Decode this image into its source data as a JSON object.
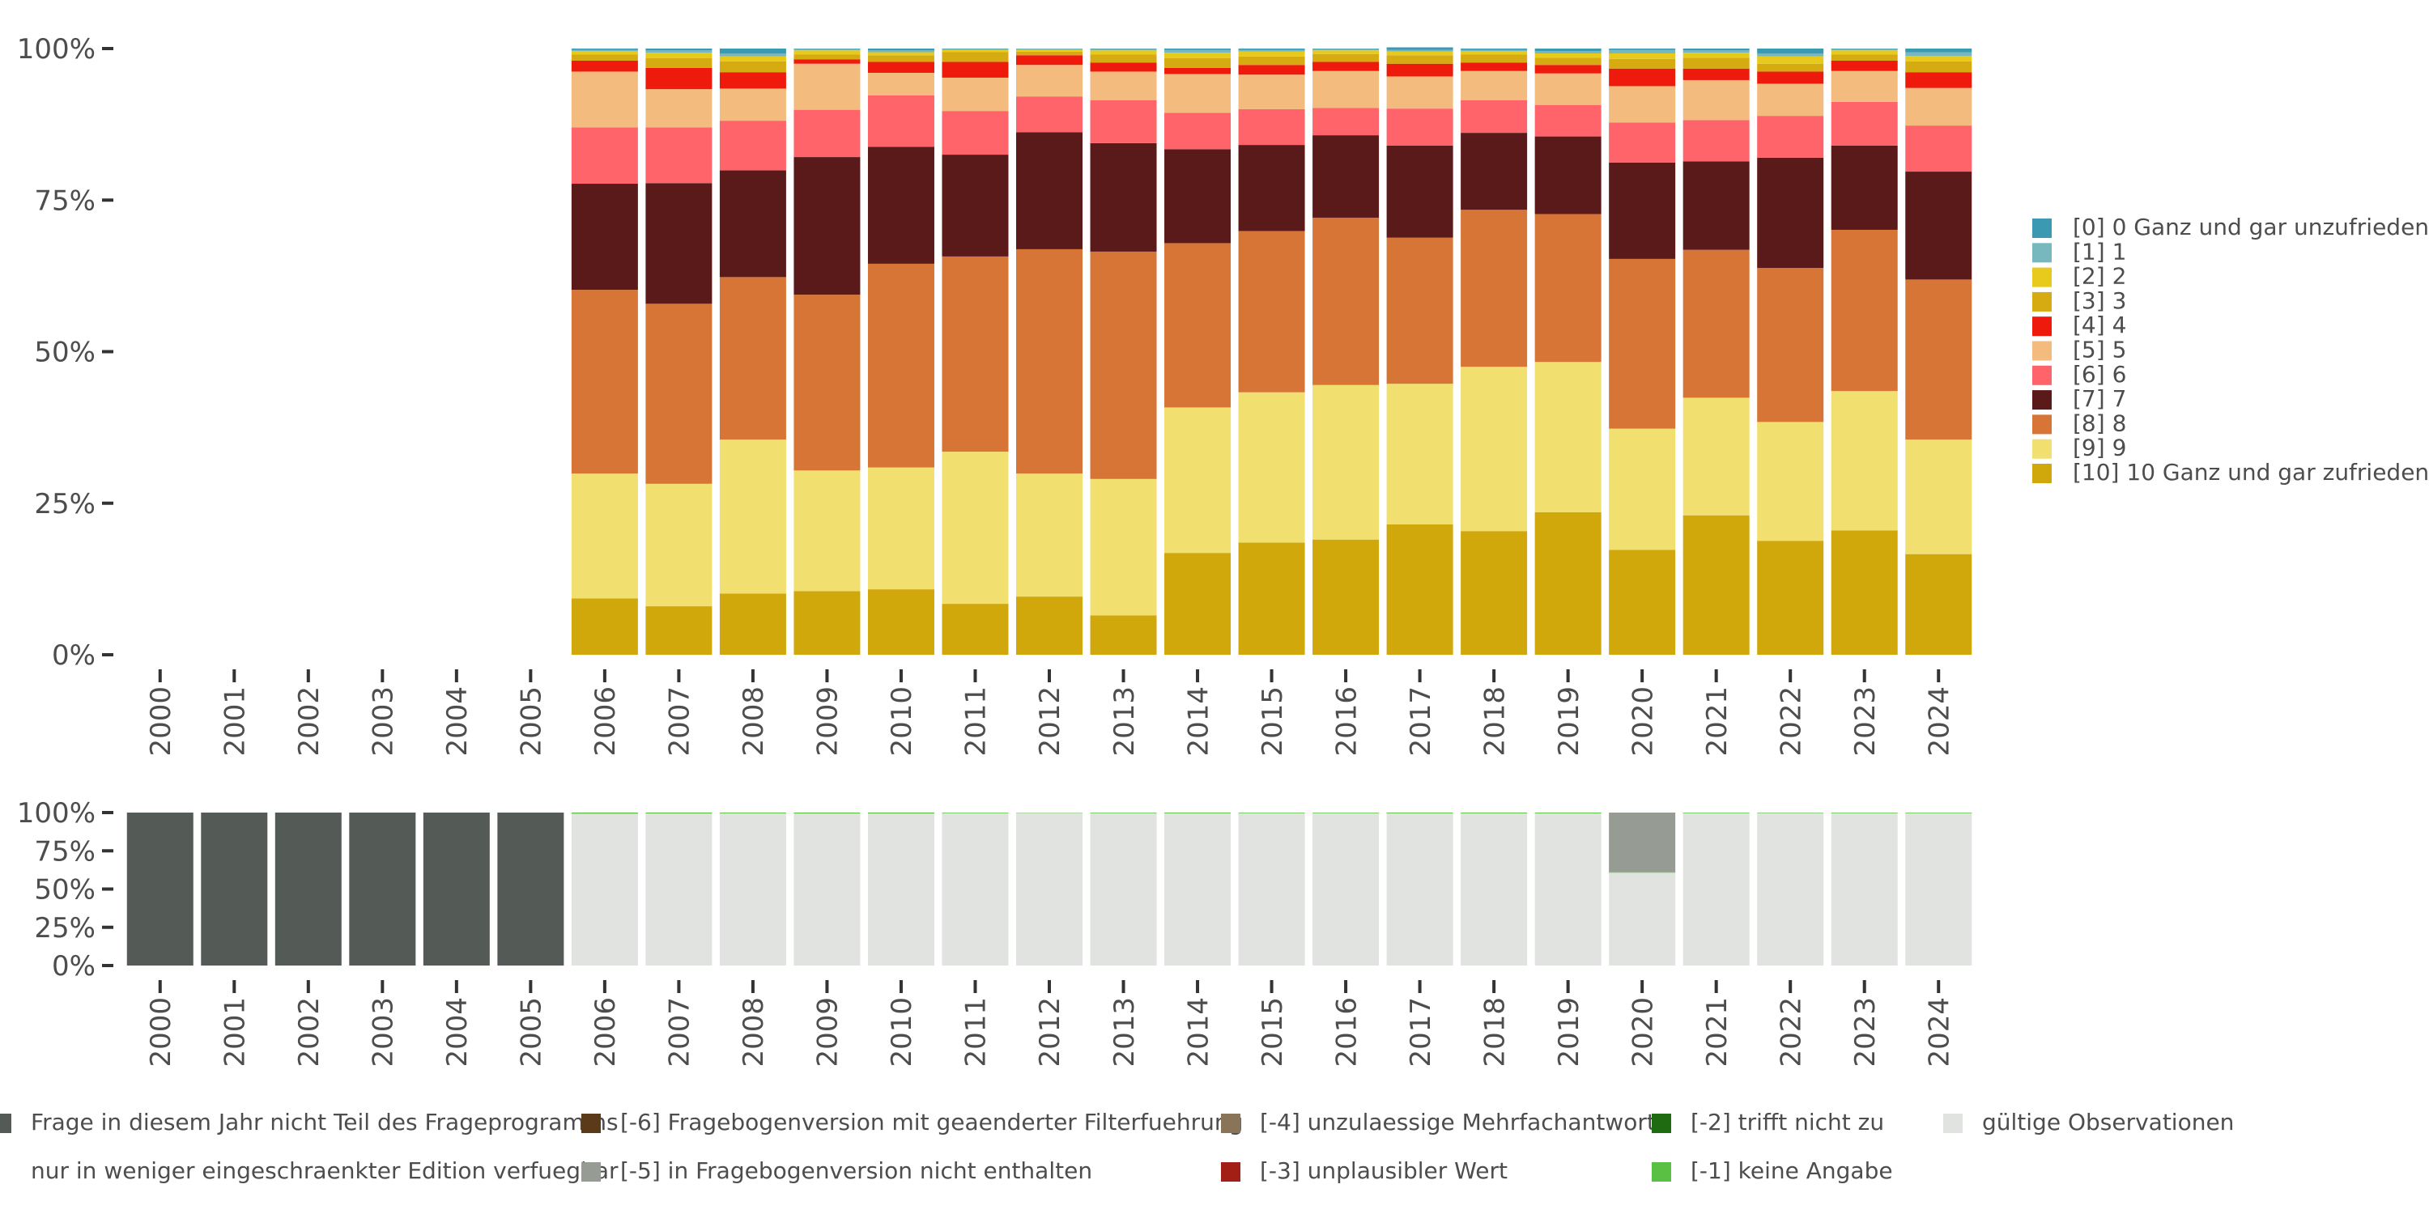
{
  "chart_data": [
    {
      "type": "bar",
      "stacked": true,
      "percent": true,
      "categories": [
        "2000",
        "2001",
        "2002",
        "2003",
        "2004",
        "2005",
        "2006",
        "2007",
        "2008",
        "2009",
        "2010",
        "2011",
        "2012",
        "2013",
        "2014",
        "2015",
        "2016",
        "2017",
        "2018",
        "2019",
        "2020",
        "2021",
        "2022",
        "2023",
        "2024"
      ],
      "ylim": [
        0,
        100
      ],
      "yticks": [
        "0%",
        "25%",
        "50%",
        "75%",
        "100%"
      ],
      "legend_position": "right",
      "series": [
        {
          "name": "[10] 10 Ganz und gar zufrieden",
          "color": "#d0a80b",
          "values": [
            0,
            0,
            0,
            0,
            0,
            0,
            9.3,
            8.0,
            10.1,
            10.5,
            10.8,
            8.4,
            9.6,
            6.5,
            16.8,
            18.5,
            19.0,
            21.5,
            20.4,
            23.5,
            17.3,
            23.0,
            18.8,
            20.5,
            16.6
          ]
        },
        {
          "name": "[9] 9",
          "color": "#f1df6f",
          "values": [
            0,
            0,
            0,
            0,
            0,
            0,
            20.6,
            20.2,
            25.4,
            19.9,
            20.1,
            25.1,
            20.3,
            22.5,
            24.0,
            24.8,
            25.5,
            23.2,
            27.1,
            24.8,
            20.0,
            19.4,
            19.6,
            23.0,
            18.9
          ]
        },
        {
          "name": "[8] 8",
          "color": "#d67536",
          "values": [
            0,
            0,
            0,
            0,
            0,
            0,
            30.3,
            29.7,
            26.8,
            29.0,
            33.6,
            32.2,
            37.0,
            37.5,
            27.1,
            26.6,
            27.6,
            24.1,
            25.9,
            24.4,
            28.0,
            24.4,
            25.4,
            26.6,
            26.4
          ]
        },
        {
          "name": "[7] 7",
          "color": "#5b1a1a",
          "values": [
            0,
            0,
            0,
            0,
            0,
            0,
            17.5,
            19.9,
            17.6,
            22.7,
            19.3,
            16.8,
            19.3,
            17.9,
            15.5,
            14.2,
            13.6,
            15.2,
            12.7,
            12.8,
            15.9,
            14.6,
            18.2,
            13.9,
            17.8
          ]
        },
        {
          "name": "[6] 6",
          "color": "#fe6469",
          "values": [
            0,
            0,
            0,
            0,
            0,
            0,
            9.3,
            9.2,
            8.2,
            7.8,
            8.5,
            7.2,
            5.9,
            7.1,
            6.0,
            5.9,
            4.5,
            6.1,
            5.4,
            5.2,
            6.6,
            6.8,
            6.9,
            7.2,
            7.6
          ]
        },
        {
          "name": "[5] 5",
          "color": "#f4bb7f",
          "values": [
            0,
            0,
            0,
            0,
            0,
            0,
            9.2,
            6.3,
            5.3,
            7.6,
            3.7,
            5.5,
            5.2,
            4.7,
            6.4,
            5.7,
            6.1,
            5.3,
            4.8,
            5.2,
            6.0,
            6.6,
            5.3,
            5.1,
            6.2
          ]
        },
        {
          "name": "[4] 4",
          "color": "#ee1b0d",
          "values": [
            0,
            0,
            0,
            0,
            0,
            0,
            1.8,
            3.5,
            2.7,
            0.7,
            1.8,
            2.6,
            1.6,
            1.5,
            1.0,
            1.6,
            1.5,
            2.1,
            1.4,
            1.4,
            2.9,
            1.9,
            2.0,
            1.7,
            2.6
          ]
        },
        {
          "name": "[3] 3",
          "color": "#d6ab11",
          "values": [
            0,
            0,
            0,
            0,
            0,
            0,
            1.0,
            1.6,
            1.8,
            0.8,
            1.1,
            1.6,
            0.6,
            1.3,
            1.6,
            1.4,
            1.3,
            1.4,
            1.3,
            1.2,
            1.6,
            1.8,
            1.3,
            1.0,
            1.8
          ]
        },
        {
          "name": "[2] 2",
          "color": "#e8ca1c",
          "values": [
            0,
            0,
            0,
            0,
            0,
            0,
            0.6,
            0.9,
            0.8,
            0.7,
            0.5,
            0.4,
            0.3,
            0.7,
            0.9,
            0.8,
            0.6,
            0.6,
            0.6,
            0.7,
            0.9,
            0.8,
            1.2,
            0.7,
            0.9
          ]
        },
        {
          "name": "[1] 1",
          "color": "#77b8bf",
          "values": [
            0,
            0,
            0,
            0,
            0,
            0,
            0.2,
            0.4,
            0.5,
            0.2,
            0.3,
            0.1,
            0.2,
            0.2,
            0.5,
            0.3,
            0.2,
            0.3,
            0.2,
            0.4,
            0.6,
            0.4,
            0.5,
            0.2,
            0.6
          ]
        },
        {
          "name": "[0] 0 Ganz und gar unzufrieden",
          "color": "#3b9ab1",
          "values": [
            0,
            0,
            0,
            0,
            0,
            0,
            0.2,
            0.3,
            0.8,
            0.1,
            0.3,
            0.1,
            0.0,
            0.1,
            0.2,
            0.2,
            0.1,
            0.4,
            0.2,
            0.4,
            0.2,
            0.3,
            0.8,
            0.1,
            0.6
          ]
        }
      ]
    },
    {
      "type": "bar",
      "stacked": true,
      "percent": true,
      "categories": [
        "2000",
        "2001",
        "2002",
        "2003",
        "2004",
        "2005",
        "2006",
        "2007",
        "2008",
        "2009",
        "2010",
        "2011",
        "2012",
        "2013",
        "2014",
        "2015",
        "2016",
        "2017",
        "2018",
        "2019",
        "2020",
        "2021",
        "2022",
        "2023",
        "2024"
      ],
      "ylim": [
        0,
        100
      ],
      "yticks": [
        "0%",
        "25%",
        "50%",
        "75%",
        "100%"
      ],
      "legend_position": "bottom",
      "series": [
        {
          "name": "gültige Observationen",
          "color": "#e0e3df",
          "values": [
            0,
            0,
            0,
            0,
            0,
            0,
            99.3,
            99.4,
            99.5,
            99.4,
            99.4,
            99.6,
            99.8,
            99.6,
            99.5,
            99.6,
            99.6,
            99.5,
            99.5,
            99.5,
            60.7,
            99.6,
            99.7,
            99.6,
            99.6
          ]
        },
        {
          "name": "[-1] keine Angabe",
          "color": "#5ac043",
          "values": [
            0,
            0,
            0,
            0,
            0,
            0,
            0.7,
            0.6,
            0.5,
            0.6,
            0.6,
            0.4,
            0.2,
            0.4,
            0.5,
            0.4,
            0.4,
            0.5,
            0.5,
            0.5,
            0.3,
            0.4,
            0.3,
            0.4,
            0.4
          ]
        },
        {
          "name": "[-2] trifft nicht zu",
          "color": "#1f6b12",
          "values": [
            0,
            0,
            0,
            0,
            0,
            0,
            0,
            0,
            0,
            0,
            0,
            0,
            0,
            0,
            0,
            0,
            0,
            0,
            0,
            0,
            0,
            0,
            0,
            0,
            0
          ]
        },
        {
          "name": "[-3] unplausibler Wert",
          "color": "#a31f15",
          "values": [
            0,
            0,
            0,
            0,
            0,
            0,
            0,
            0,
            0,
            0,
            0,
            0,
            0,
            0,
            0,
            0,
            0,
            0,
            0,
            0,
            0,
            0,
            0,
            0,
            0
          ]
        },
        {
          "name": "[-4] unzulaessige Mehrfachantwort",
          "color": "#8a7458",
          "values": [
            0,
            0,
            0,
            0,
            0,
            0,
            0,
            0,
            0,
            0,
            0,
            0,
            0,
            0,
            0,
            0,
            0,
            0,
            0,
            0,
            0,
            0,
            0,
            0,
            0
          ]
        },
        {
          "name": "[-5] in Fragebogenversion nicht enthalten",
          "color": "#969b93",
          "values": [
            0,
            0,
            0,
            0,
            0,
            0,
            0,
            0,
            0,
            0,
            0,
            0,
            0,
            0,
            0,
            0,
            0,
            0,
            0,
            0,
            39.0,
            0,
            0,
            0,
            0
          ]
        },
        {
          "name": "[-6] Fragebogenversion mit geaenderter Filterfuehrung",
          "color": "#5b3a1a",
          "values": [
            0,
            0,
            0,
            0,
            0,
            0,
            0,
            0,
            0,
            0,
            0,
            0,
            0,
            0,
            0,
            0,
            0,
            0,
            0,
            0,
            0,
            0,
            0,
            0,
            0
          ]
        },
        {
          "name": "nur in weniger eingeschraenkter Edition verfuegbar",
          "color": "#ffffff",
          "values": [
            0,
            0,
            0,
            0,
            0,
            0,
            0,
            0,
            0,
            0,
            0,
            0,
            0,
            0,
            0,
            0,
            0,
            0,
            0,
            0,
            0,
            0,
            0,
            0,
            0
          ]
        },
        {
          "name": "Frage in diesem Jahr nicht Teil des Frageprogramms",
          "color": "#545a55",
          "values": [
            100,
            100,
            100,
            100,
            100,
            100,
            0,
            0,
            0,
            0,
            0,
            0,
            0,
            0,
            0,
            0,
            0,
            0,
            0,
            0,
            0,
            0,
            0,
            0,
            0
          ]
        }
      ]
    }
  ]
}
